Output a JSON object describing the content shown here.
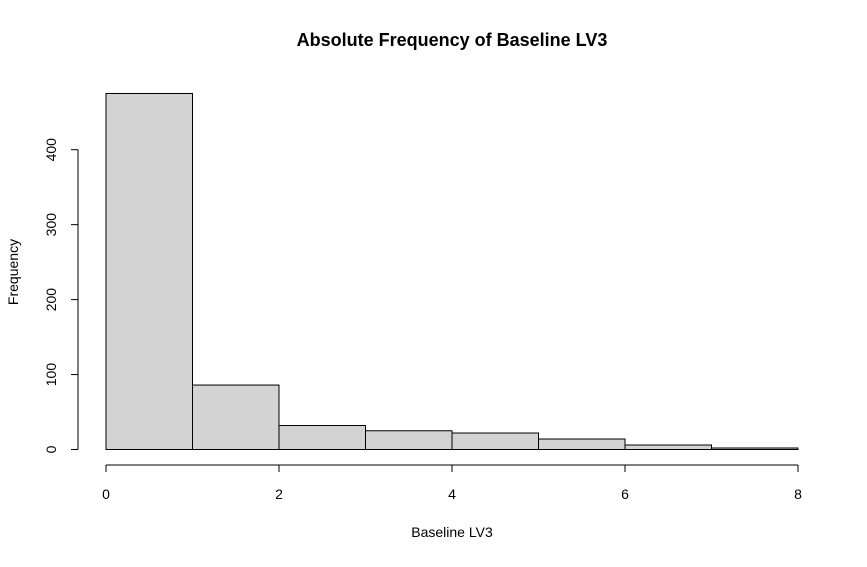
{
  "chart_data": {
    "type": "bar",
    "title": "Absolute Frequency of Baseline LV3",
    "xlabel": "Baseline LV3",
    "ylabel": "Frequency",
    "bins": [
      {
        "x0": 0,
        "x1": 1,
        "count": 475
      },
      {
        "x0": 1,
        "x1": 2,
        "count": 86
      },
      {
        "x0": 2,
        "x1": 3,
        "count": 32
      },
      {
        "x0": 3,
        "x1": 4,
        "count": 25
      },
      {
        "x0": 4,
        "x1": 5,
        "count": 22
      },
      {
        "x0": 5,
        "x1": 6,
        "count": 14
      },
      {
        "x0": 6,
        "x1": 7,
        "count": 6
      },
      {
        "x0": 7,
        "x1": 8,
        "count": 2
      }
    ],
    "xlim": [
      0,
      8
    ],
    "ylim": [
      0,
      475
    ],
    "x_ticks": [
      0,
      2,
      4,
      6,
      8
    ],
    "y_ticks": [
      0,
      100,
      200,
      300,
      400
    ],
    "bar_fill": "#d3d3d3",
    "bar_stroke": "#000000",
    "grid": false
  }
}
